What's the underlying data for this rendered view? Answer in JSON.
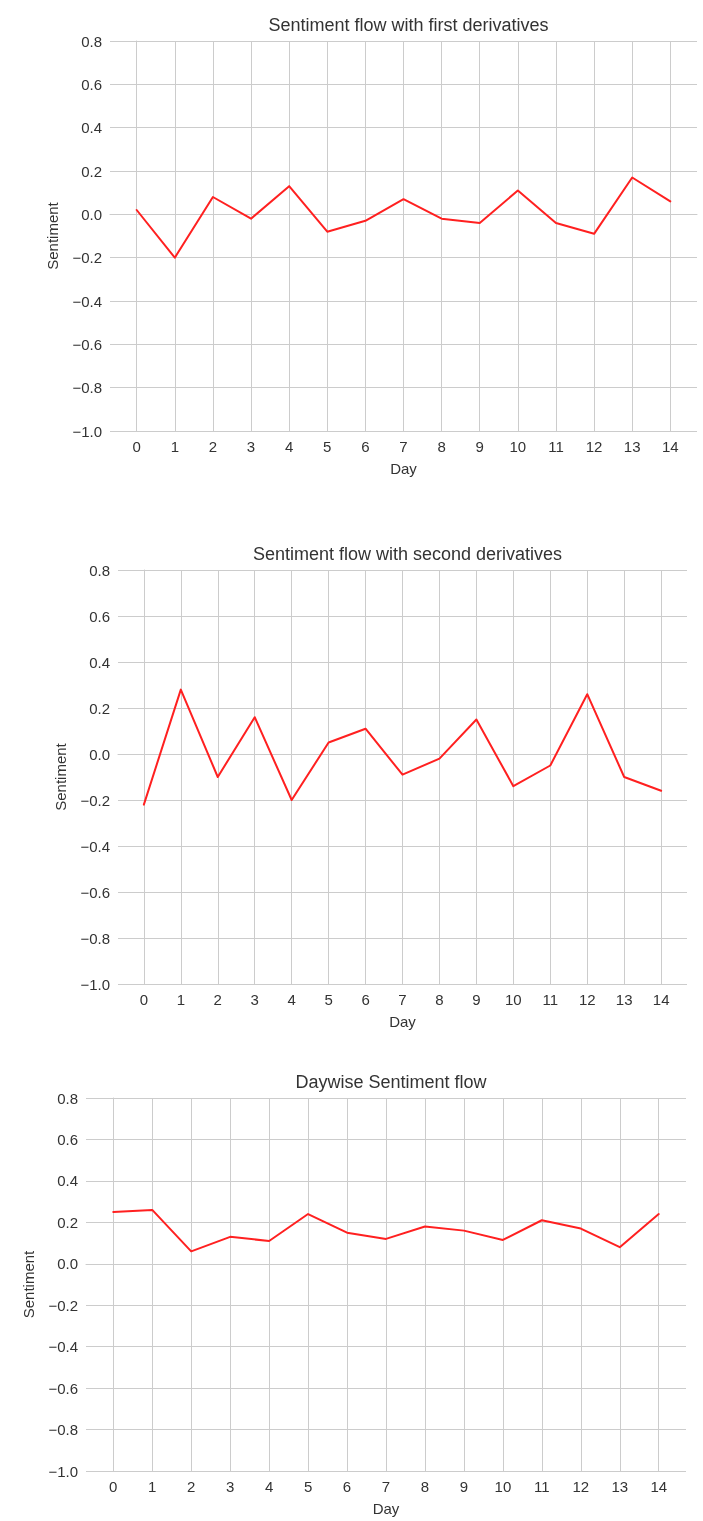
{
  "chart_data": [
    {
      "type": "line",
      "title": "Sentiment flow with first derivatives",
      "xlabel": "Day",
      "ylabel": "Sentiment",
      "x": [
        0,
        1,
        2,
        3,
        4,
        5,
        6,
        7,
        8,
        9,
        10,
        11,
        12,
        13,
        14
      ],
      "series": [
        {
          "color": "#ff2020",
          "values": [
            0.02,
            -0.2,
            0.08,
            -0.02,
            0.13,
            -0.08,
            -0.03,
            0.07,
            -0.02,
            -0.04,
            0.11,
            -0.04,
            -0.09,
            0.17,
            0.06
          ]
        }
      ],
      "xlim": [
        -0.7,
        14.7
      ],
      "xticks": [
        0,
        1,
        2,
        3,
        4,
        5,
        6,
        7,
        8,
        9,
        10,
        11,
        12,
        13,
        14
      ],
      "ylim": [
        -1.0,
        0.8
      ],
      "yticks": [
        {
          "value": -1.0,
          "label": "−1.0"
        },
        {
          "value": -0.8,
          "label": "−0.8"
        },
        {
          "value": -0.6,
          "label": "−0.6"
        },
        {
          "value": -0.4,
          "label": "−0.4"
        },
        {
          "value": -0.2,
          "label": "−0.2"
        },
        {
          "value": 0,
          "label": "0.0"
        },
        {
          "value": 0.2,
          "label": "0.2"
        },
        {
          "value": 0.4,
          "label": "0.4"
        },
        {
          "value": 0.6,
          "label": "0.6"
        },
        {
          "value": 0.8,
          "label": "0.8"
        }
      ],
      "grid": true,
      "marker": "none",
      "line_style": "solid"
    },
    {
      "type": "line",
      "title": "Sentiment flow with second derivatives",
      "xlabel": "Day",
      "ylabel": "Sentiment",
      "x": [
        0,
        1,
        2,
        3,
        4,
        5,
        6,
        7,
        8,
        9,
        10,
        11,
        12,
        13,
        14
      ],
      "series": [
        {
          "color": "#ff2020",
          "values": [
            -0.22,
            0.28,
            -0.1,
            0.16,
            -0.2,
            0.05,
            0.11,
            -0.09,
            -0.02,
            0.15,
            -0.14,
            -0.05,
            0.26,
            -0.1,
            -0.16
          ]
        }
      ],
      "xlim": [
        -0.7,
        14.7
      ],
      "xticks": [
        0,
        1,
        2,
        3,
        4,
        5,
        6,
        7,
        8,
        9,
        10,
        11,
        12,
        13,
        14
      ],
      "ylim": [
        -1.0,
        0.8
      ],
      "yticks": [
        {
          "value": -1.0,
          "label": "−1.0"
        },
        {
          "value": -0.8,
          "label": "−0.8"
        },
        {
          "value": -0.6,
          "label": "−0.6"
        },
        {
          "value": -0.4,
          "label": "−0.4"
        },
        {
          "value": -0.2,
          "label": "−0.2"
        },
        {
          "value": 0,
          "label": "0.0"
        },
        {
          "value": 0.2,
          "label": "0.2"
        },
        {
          "value": 0.4,
          "label": "0.4"
        },
        {
          "value": 0.6,
          "label": "0.6"
        },
        {
          "value": 0.8,
          "label": "0.8"
        }
      ],
      "grid": true,
      "marker": "none",
      "line_style": "solid"
    },
    {
      "type": "line",
      "title": "Daywise Sentiment flow",
      "xlabel": "Day",
      "ylabel": "Sentiment",
      "x": [
        0,
        1,
        2,
        3,
        4,
        5,
        6,
        7,
        8,
        9,
        10,
        11,
        12,
        13,
        14
      ],
      "series": [
        {
          "color": "#ff2020",
          "values": [
            0.25,
            0.26,
            0.06,
            0.13,
            0.11,
            0.24,
            0.15,
            0.12,
            0.18,
            0.16,
            0.115,
            0.21,
            0.17,
            0.08,
            0.24
          ]
        }
      ],
      "xlim": [
        -0.7,
        14.7
      ],
      "xticks": [
        0,
        1,
        2,
        3,
        4,
        5,
        6,
        7,
        8,
        9,
        10,
        11,
        12,
        13,
        14
      ],
      "ylim": [
        -1.0,
        0.8
      ],
      "yticks": [
        {
          "value": -1.0,
          "label": "−1.0"
        },
        {
          "value": -0.8,
          "label": "−0.8"
        },
        {
          "value": -0.6,
          "label": "−0.6"
        },
        {
          "value": -0.4,
          "label": "−0.4"
        },
        {
          "value": -0.2,
          "label": "−0.2"
        },
        {
          "value": 0,
          "label": "0.0"
        },
        {
          "value": 0.2,
          "label": "0.2"
        },
        {
          "value": 0.4,
          "label": "0.4"
        },
        {
          "value": 0.6,
          "label": "0.6"
        },
        {
          "value": 0.8,
          "label": "0.8"
        }
      ],
      "grid": true,
      "marker": "none",
      "line_style": "solid"
    }
  ]
}
